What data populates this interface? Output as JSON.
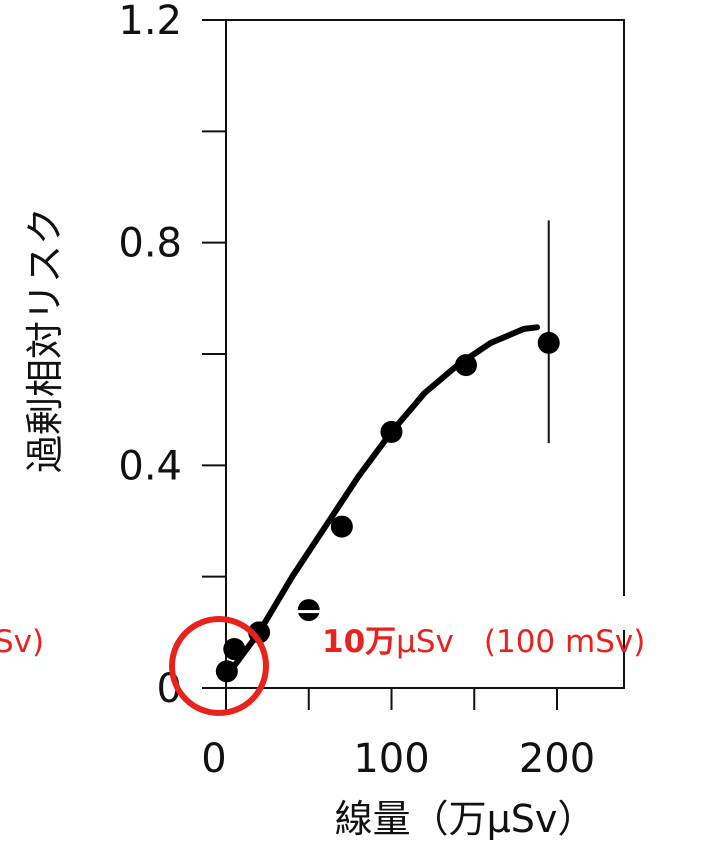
{
  "chart_data": {
    "type": "scatter",
    "xlabel": "線量（万μSv）",
    "ylabel": "過剰相対リスク",
    "xlim": [
      0,
      240
    ],
    "ylim": [
      0,
      1.2
    ],
    "x_ticks": [
      0,
      100,
      200
    ],
    "x_tick_labels": [
      "0",
      "100",
      "200"
    ],
    "y_ticks": [
      0,
      0.4,
      0.8,
      1.2
    ],
    "y_tick_labels": [
      "0",
      "0.4",
      "0.8",
      "1.2"
    ],
    "points": [
      {
        "x": 0.5,
        "y": 0.03
      },
      {
        "x": 5,
        "y": 0.07
      },
      {
        "x": 20,
        "y": 0.1
      },
      {
        "x": 50,
        "y": 0.14
      },
      {
        "x": 70,
        "y": 0.29
      },
      {
        "x": 100,
        "y": 0.46
      },
      {
        "x": 145,
        "y": 0.58
      },
      {
        "x": 195,
        "y": 0.62
      }
    ],
    "error_bars": [
      {
        "x": 195,
        "low": 0.44,
        "high": 0.84
      }
    ],
    "fit_curve": [
      [
        0,
        0.02
      ],
      [
        20,
        0.1
      ],
      [
        40,
        0.2
      ],
      [
        60,
        0.29
      ],
      [
        80,
        0.38
      ],
      [
        100,
        0.46
      ],
      [
        120,
        0.53
      ],
      [
        140,
        0.58
      ],
      [
        160,
        0.62
      ],
      [
        180,
        0.645
      ],
      [
        188,
        0.648
      ]
    ],
    "grid": false,
    "annotations": {
      "left_fragment": "Sv)",
      "main_bold": "10万",
      "main_rest": "μSv",
      "main_paren": "(100 mSv)"
    },
    "colors": {
      "axis": "#111111",
      "marker": "#000000",
      "curve": "#000000",
      "highlight": "#e8231e"
    }
  }
}
